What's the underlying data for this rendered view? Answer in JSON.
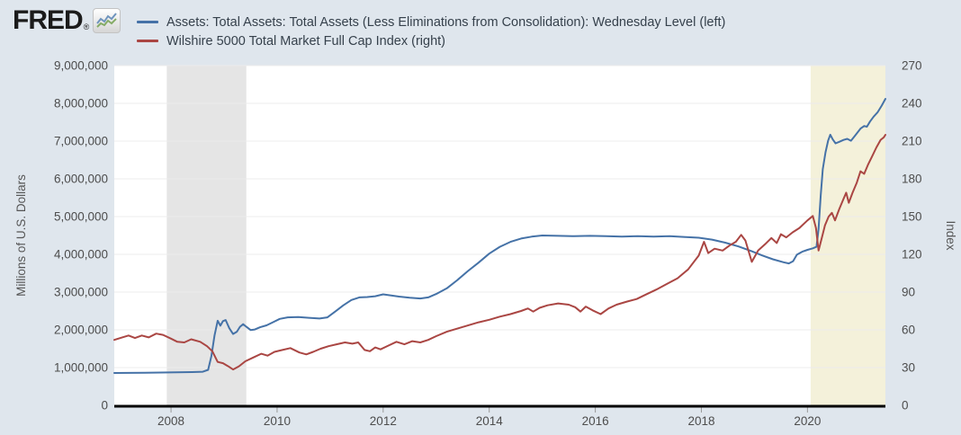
{
  "brand": {
    "logo_text": "FRED",
    "registered_mark": "®",
    "logo_icon": "line-chart-icon"
  },
  "legend": [
    {
      "label": "Assets: Total Assets: Total Assets (Less Eliminations from Consolidation): Wednesday Level (left)",
      "color": "#4572a7"
    },
    {
      "label": "Wilshire 5000 Total Market Full Cap Index (right)",
      "color": "#aa4643"
    }
  ],
  "colors": {
    "page_background": "#dfe6ed",
    "plot_background": "#ffffff",
    "gridline": "#ececec",
    "axis_line": "#000000",
    "tick_text": "#4d4d4d",
    "axis_title_text": "#555555",
    "recession_band": "#e5e5e5",
    "highlight_band": "#f4f1da",
    "series_blue": "#4572a7",
    "series_red": "#aa4643"
  },
  "chart_data": {
    "type": "line",
    "title": "",
    "ylabel_left": "Millions of U.S. Dollars",
    "ylabel_right": "Index",
    "x_domain": [
      2006.93,
      2021.47
    ],
    "x_ticks": [
      {
        "value": 2008,
        "label": "2008"
      },
      {
        "value": 2010,
        "label": "2010"
      },
      {
        "value": 2012,
        "label": "2012"
      },
      {
        "value": 2014,
        "label": "2014"
      },
      {
        "value": 2016,
        "label": "2016"
      },
      {
        "value": 2018,
        "label": "2018"
      },
      {
        "value": 2020,
        "label": "2020"
      }
    ],
    "y_left": {
      "min": 0,
      "max": 9000000,
      "tick_values": [
        0,
        1000000,
        2000000,
        3000000,
        4000000,
        5000000,
        6000000,
        7000000,
        8000000,
        9000000
      ],
      "tick_labels": [
        "0",
        "1,000,000",
        "2,000,000",
        "3,000,000",
        "4,000,000",
        "5,000,000",
        "6,000,000",
        "7,000,000",
        "8,000,000",
        "9,000,000"
      ]
    },
    "y_right": {
      "min": 0,
      "max": 270,
      "tick_values": [
        0,
        30,
        60,
        90,
        120,
        150,
        180,
        210,
        240,
        270
      ],
      "tick_labels": [
        "0",
        "30",
        "60",
        "90",
        "120",
        "150",
        "180",
        "210",
        "240",
        "270"
      ]
    },
    "grid": "horizontal-only",
    "legend_position": "top",
    "bands": [
      {
        "name": "recession-2008",
        "from": 2007.92,
        "to": 2009.42,
        "color": "#e5e5e5"
      },
      {
        "name": "highlight-2020",
        "from": 2020.06,
        "to": 2021.47,
        "color": "#f4f1da"
      }
    ],
    "series": [
      {
        "name": "Assets: Total Assets: Total Assets (Less Eliminations from Consolidation): Wednesday Level (left)",
        "axis": "left",
        "color": "#4572a7",
        "points": [
          [
            2006.93,
            858000
          ],
          [
            2007.2,
            860000
          ],
          [
            2007.5,
            863000
          ],
          [
            2007.8,
            868000
          ],
          [
            2008.1,
            875000
          ],
          [
            2008.4,
            882000
          ],
          [
            2008.6,
            890000
          ],
          [
            2008.7,
            940000
          ],
          [
            2008.76,
            1300000
          ],
          [
            2008.82,
            1850000
          ],
          [
            2008.88,
            2240000
          ],
          [
            2008.93,
            2110000
          ],
          [
            2008.98,
            2230000
          ],
          [
            2009.03,
            2260000
          ],
          [
            2009.1,
            2040000
          ],
          [
            2009.17,
            1890000
          ],
          [
            2009.24,
            1950000
          ],
          [
            2009.3,
            2080000
          ],
          [
            2009.36,
            2150000
          ],
          [
            2009.42,
            2080000
          ],
          [
            2009.5,
            1995000
          ],
          [
            2009.58,
            2010000
          ],
          [
            2009.68,
            2070000
          ],
          [
            2009.8,
            2120000
          ],
          [
            2009.92,
            2200000
          ],
          [
            2010.05,
            2290000
          ],
          [
            2010.2,
            2330000
          ],
          [
            2010.4,
            2340000
          ],
          [
            2010.6,
            2320000
          ],
          [
            2010.8,
            2300000
          ],
          [
            2010.95,
            2330000
          ],
          [
            2011.1,
            2490000
          ],
          [
            2011.25,
            2650000
          ],
          [
            2011.4,
            2790000
          ],
          [
            2011.55,
            2860000
          ],
          [
            2011.7,
            2870000
          ],
          [
            2011.85,
            2890000
          ],
          [
            2012.0,
            2940000
          ],
          [
            2012.15,
            2910000
          ],
          [
            2012.3,
            2880000
          ],
          [
            2012.5,
            2850000
          ],
          [
            2012.7,
            2830000
          ],
          [
            2012.85,
            2860000
          ],
          [
            2013.0,
            2950000
          ],
          [
            2013.2,
            3100000
          ],
          [
            2013.4,
            3320000
          ],
          [
            2013.6,
            3560000
          ],
          [
            2013.8,
            3780000
          ],
          [
            2014.0,
            4020000
          ],
          [
            2014.2,
            4200000
          ],
          [
            2014.4,
            4330000
          ],
          [
            2014.6,
            4420000
          ],
          [
            2014.8,
            4470000
          ],
          [
            2015.0,
            4500000
          ],
          [
            2015.3,
            4490000
          ],
          [
            2015.6,
            4480000
          ],
          [
            2015.9,
            4490000
          ],
          [
            2016.2,
            4480000
          ],
          [
            2016.5,
            4470000
          ],
          [
            2016.8,
            4480000
          ],
          [
            2017.1,
            4470000
          ],
          [
            2017.4,
            4480000
          ],
          [
            2017.7,
            4460000
          ],
          [
            2017.95,
            4440000
          ],
          [
            2018.2,
            4390000
          ],
          [
            2018.45,
            4310000
          ],
          [
            2018.7,
            4210000
          ],
          [
            2018.95,
            4080000
          ],
          [
            2019.15,
            3970000
          ],
          [
            2019.35,
            3870000
          ],
          [
            2019.55,
            3790000
          ],
          [
            2019.65,
            3760000
          ],
          [
            2019.73,
            3820000
          ],
          [
            2019.8,
            3990000
          ],
          [
            2019.9,
            4070000
          ],
          [
            2020.0,
            4120000
          ],
          [
            2020.1,
            4160000
          ],
          [
            2020.17,
            4200000
          ],
          [
            2020.21,
            4670000
          ],
          [
            2020.25,
            5560000
          ],
          [
            2020.29,
            6260000
          ],
          [
            2020.34,
            6700000
          ],
          [
            2020.39,
            7010000
          ],
          [
            2020.43,
            7170000
          ],
          [
            2020.48,
            7040000
          ],
          [
            2020.53,
            6940000
          ],
          [
            2020.6,
            6980000
          ],
          [
            2020.68,
            7030000
          ],
          [
            2020.75,
            7060000
          ],
          [
            2020.82,
            7010000
          ],
          [
            2020.9,
            7150000
          ],
          [
            2021.0,
            7330000
          ],
          [
            2021.07,
            7400000
          ],
          [
            2021.12,
            7380000
          ],
          [
            2021.18,
            7520000
          ],
          [
            2021.25,
            7650000
          ],
          [
            2021.32,
            7760000
          ],
          [
            2021.4,
            7940000
          ],
          [
            2021.47,
            8120000
          ]
        ]
      },
      {
        "name": "Wilshire 5000 Total Market Full Cap Index (right)",
        "axis": "right",
        "color": "#aa4643",
        "points": [
          [
            2006.93,
            52
          ],
          [
            2007.08,
            54
          ],
          [
            2007.2,
            55.5
          ],
          [
            2007.32,
            53.5
          ],
          [
            2007.45,
            55.5
          ],
          [
            2007.58,
            54
          ],
          [
            2007.72,
            57
          ],
          [
            2007.85,
            56
          ],
          [
            2008.0,
            53
          ],
          [
            2008.12,
            50.5
          ],
          [
            2008.25,
            50
          ],
          [
            2008.38,
            52.5
          ],
          [
            2008.55,
            50.5
          ],
          [
            2008.68,
            47
          ],
          [
            2008.78,
            43
          ],
          [
            2008.88,
            34.5
          ],
          [
            2008.98,
            33.5
          ],
          [
            2009.08,
            31
          ],
          [
            2009.17,
            28.5
          ],
          [
            2009.28,
            31
          ],
          [
            2009.4,
            35
          ],
          [
            2009.55,
            38
          ],
          [
            2009.7,
            41
          ],
          [
            2009.82,
            39.5
          ],
          [
            2009.95,
            42.5
          ],
          [
            2010.1,
            44
          ],
          [
            2010.25,
            45.5
          ],
          [
            2010.42,
            42
          ],
          [
            2010.55,
            40.5
          ],
          [
            2010.68,
            42.5
          ],
          [
            2010.82,
            45
          ],
          [
            2010.97,
            47
          ],
          [
            2011.12,
            48.5
          ],
          [
            2011.28,
            50
          ],
          [
            2011.42,
            49
          ],
          [
            2011.53,
            50
          ],
          [
            2011.65,
            44
          ],
          [
            2011.75,
            43
          ],
          [
            2011.85,
            46
          ],
          [
            2011.95,
            44.5
          ],
          [
            2012.1,
            47.5
          ],
          [
            2012.25,
            50.5
          ],
          [
            2012.4,
            48.5
          ],
          [
            2012.55,
            51
          ],
          [
            2012.7,
            50
          ],
          [
            2012.85,
            52
          ],
          [
            2013.0,
            55
          ],
          [
            2013.2,
            58.5
          ],
          [
            2013.4,
            61
          ],
          [
            2013.6,
            63.5
          ],
          [
            2013.8,
            66
          ],
          [
            2014.0,
            68
          ],
          [
            2014.2,
            70.5
          ],
          [
            2014.4,
            72.5
          ],
          [
            2014.6,
            75
          ],
          [
            2014.73,
            77
          ],
          [
            2014.83,
            74.5
          ],
          [
            2014.95,
            77.5
          ],
          [
            2015.1,
            79.5
          ],
          [
            2015.3,
            81
          ],
          [
            2015.5,
            80
          ],
          [
            2015.62,
            78
          ],
          [
            2015.72,
            74.5
          ],
          [
            2015.82,
            78.5
          ],
          [
            2015.95,
            75.5
          ],
          [
            2016.1,
            72.5
          ],
          [
            2016.25,
            77
          ],
          [
            2016.4,
            80
          ],
          [
            2016.6,
            82.5
          ],
          [
            2016.78,
            84.5
          ],
          [
            2016.95,
            88
          ],
          [
            2017.15,
            92
          ],
          [
            2017.35,
            96.5
          ],
          [
            2017.55,
            101
          ],
          [
            2017.75,
            108
          ],
          [
            2017.95,
            119
          ],
          [
            2018.05,
            130
          ],
          [
            2018.13,
            121
          ],
          [
            2018.25,
            124.5
          ],
          [
            2018.4,
            123
          ],
          [
            2018.53,
            127
          ],
          [
            2018.65,
            130
          ],
          [
            2018.75,
            135.5
          ],
          [
            2018.83,
            131
          ],
          [
            2018.95,
            114
          ],
          [
            2019.07,
            123
          ],
          [
            2019.2,
            128
          ],
          [
            2019.32,
            133
          ],
          [
            2019.42,
            129
          ],
          [
            2019.5,
            136
          ],
          [
            2019.6,
            133.5
          ],
          [
            2019.72,
            137.5
          ],
          [
            2019.85,
            141
          ],
          [
            2020.0,
            147
          ],
          [
            2020.1,
            150.5
          ],
          [
            2020.16,
            141
          ],
          [
            2020.21,
            123
          ],
          [
            2020.27,
            133
          ],
          [
            2020.33,
            143
          ],
          [
            2020.4,
            150
          ],
          [
            2020.46,
            153
          ],
          [
            2020.52,
            147
          ],
          [
            2020.6,
            156
          ],
          [
            2020.68,
            164
          ],
          [
            2020.73,
            169
          ],
          [
            2020.78,
            161
          ],
          [
            2020.85,
            169
          ],
          [
            2020.93,
            177
          ],
          [
            2021.0,
            186
          ],
          [
            2021.07,
            184
          ],
          [
            2021.14,
            191
          ],
          [
            2021.22,
            198
          ],
          [
            2021.3,
            205
          ],
          [
            2021.38,
            211
          ],
          [
            2021.44,
            213
          ],
          [
            2021.47,
            215
          ]
        ]
      }
    ]
  }
}
